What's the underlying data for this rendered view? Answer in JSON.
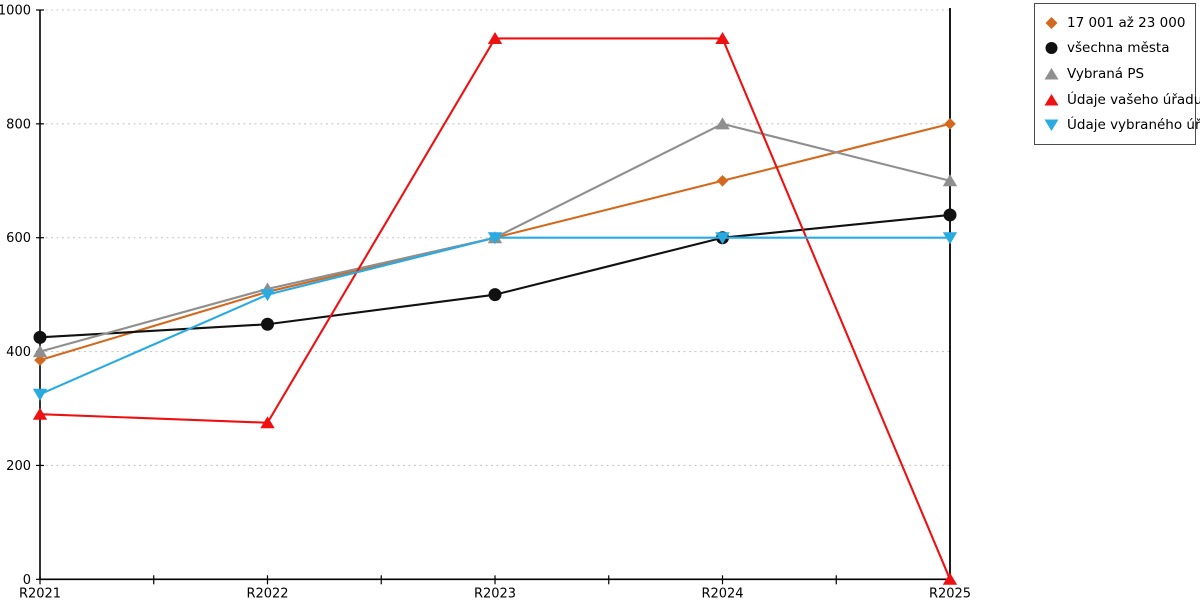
{
  "chart_data": {
    "type": "line",
    "categories": [
      "R2021",
      "R2022",
      "R2023",
      "R2024",
      "R2025"
    ],
    "series": [
      {
        "name": "17 001 až 23 000",
        "color": "#d2691e",
        "marker": "diamond",
        "values": [
          385,
          505,
          600,
          700,
          800
        ]
      },
      {
        "name": "všechna města",
        "color": "#111111",
        "marker": "circle",
        "values": [
          425,
          448,
          500,
          600,
          640
        ]
      },
      {
        "name": "Vybraná PS",
        "color": "#8f8f8f",
        "marker": "triangle-up",
        "values": [
          400,
          510,
          600,
          800,
          700
        ]
      },
      {
        "name": "Údaje vašeho úřadu",
        "color": "#ee1111",
        "marker": "triangle-up",
        "values": [
          290,
          275,
          950,
          950,
          0
        ]
      },
      {
        "name": "Údaje vybraného úřadu",
        "color": "#29abe2",
        "marker": "triangle-down",
        "values": [
          325,
          500,
          600,
          600,
          600
        ]
      }
    ],
    "title": "",
    "xlabel": "",
    "ylabel": "",
    "ylim": [
      0,
      1000
    ],
    "y_ticks": [
      0,
      200,
      400,
      600,
      800,
      1000
    ],
    "grid": "horizontal-dotted",
    "gridline_color": "#c9c9c9",
    "axis_color": "#000000",
    "legend_position": "top-right-outside"
  }
}
